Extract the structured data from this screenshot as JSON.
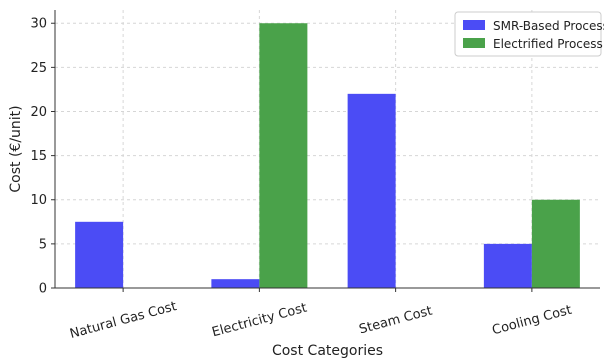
{
  "chart_data": {
    "type": "bar",
    "title": "",
    "xlabel": "Cost Categories",
    "ylabel": "Cost (€/unit)",
    "categories": [
      "Natural Gas Cost",
      "Electricity Cost",
      "Steam Cost",
      "Cooling Cost"
    ],
    "series": [
      {
        "name": "SMR-Based Process",
        "values": [
          7.5,
          1,
          22,
          5
        ],
        "color": "#4b4cf5"
      },
      {
        "name": "Electrified Process",
        "values": [
          0,
          30,
          0,
          10
        ],
        "color": "#4aa24a"
      }
    ],
    "ylim": [
      0,
      31.5
    ],
    "yticks": [
      0,
      5,
      10,
      15,
      20,
      25,
      30
    ],
    "grid": true,
    "legend_position": "top-right"
  }
}
